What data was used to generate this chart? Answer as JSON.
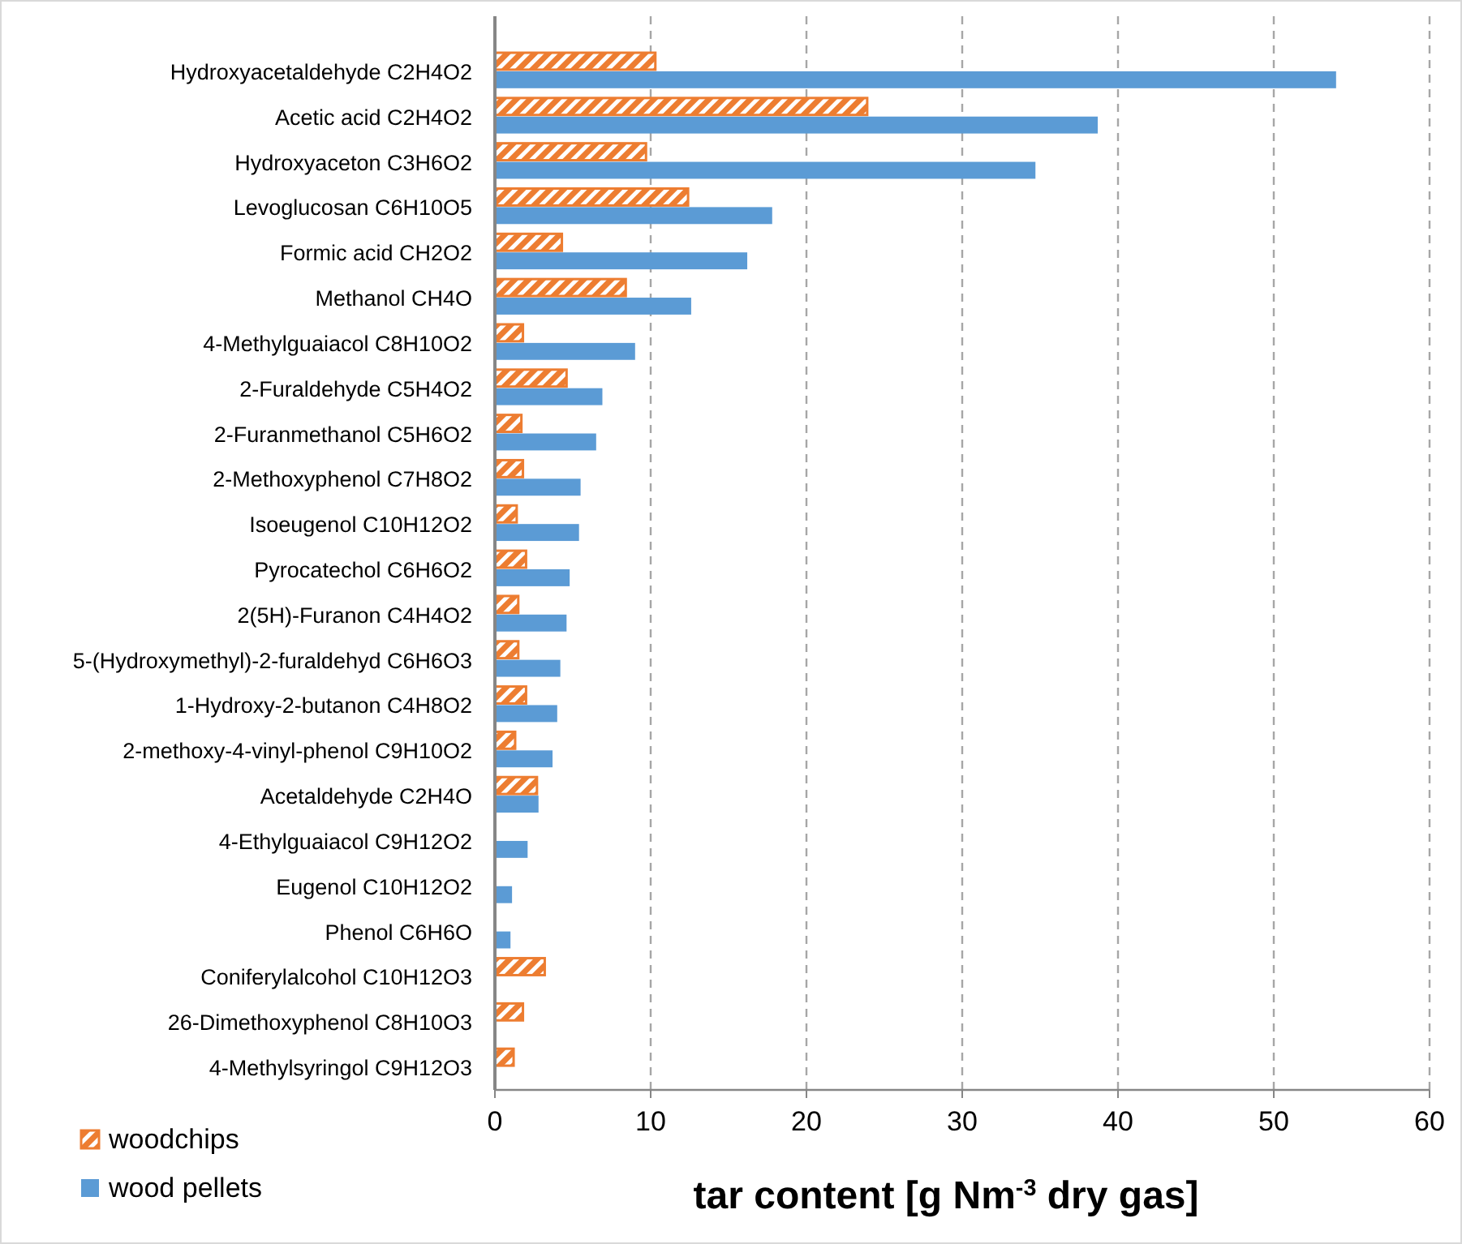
{
  "chart_data": {
    "type": "bar",
    "orientation": "horizontal",
    "xlabel": "tar content [g Nm$^{-3}$ dry gas]",
    "categories": [
      "Hydroxyacetaldehyde C2H4O2",
      "Acetic acid C2H4O2",
      "Hydroxyaceton C3H6O2",
      "Levoglucosan C6H10O5",
      "Formic acid CH2O2",
      "Methanol CH4O",
      "4-Methylguaiacol C8H10O2",
      "2-Furaldehyde C5H4O2",
      "2-Furanmethanol C5H6O2",
      "2-Methoxyphenol C7H8O2",
      "Isoeugenol C10H12O2",
      "Pyrocatechol C6H6O2",
      "2(5H)-Furanon C4H4O2",
      "5-(Hydroxymethyl)-2-furaldehyd C6H6O3",
      "1-Hydroxy-2-butanon C4H8O2",
      "2-methoxy-4-vinyl-phenol C9H10O2",
      "Acetaldehyde C2H4O",
      "4-Ethylguaiacol C9H12O2",
      "Eugenol C10H12O2",
      "Phenol C6H6O",
      "Coniferylalcohol C10H12O3",
      "26-Dimethoxyphenol C8H10O3",
      "4-Methylsyringol C9H12O3"
    ],
    "series": [
      {
        "name": "woodchips",
        "color": "#ed7d31",
        "values": [
          10.3,
          23.9,
          9.7,
          12.4,
          4.3,
          8.4,
          1.8,
          4.6,
          1.7,
          1.8,
          1.4,
          2.0,
          1.5,
          1.5,
          2.0,
          1.3,
          2.7,
          null,
          null,
          null,
          3.2,
          1.8,
          1.2
        ]
      },
      {
        "name": "wood pellets",
        "color": "#5b9bd5",
        "values": [
          54,
          38.7,
          34.7,
          17.8,
          16.2,
          12.6,
          9.0,
          6.9,
          6.5,
          5.5,
          5.4,
          4.8,
          4.6,
          4.2,
          4.0,
          3.7,
          2.8,
          2.1,
          1.1,
          1.0,
          null,
          null,
          null
        ]
      }
    ],
    "xlim": [
      0,
      60
    ],
    "xticks": [
      0,
      10,
      20,
      30,
      40,
      50,
      60
    ],
    "grid": "x",
    "legend": "bottom left"
  }
}
